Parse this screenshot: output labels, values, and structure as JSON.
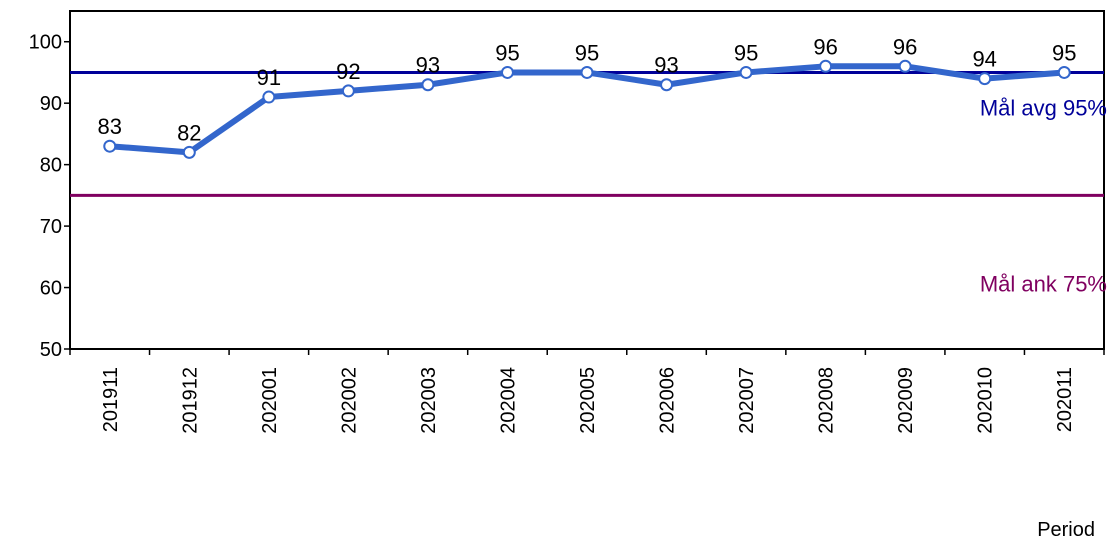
{
  "chart_data": {
    "type": "line",
    "categories": [
      "201911",
      "201912",
      "202001",
      "202002",
      "202003",
      "202004",
      "202005",
      "202006",
      "202007",
      "202008",
      "202009",
      "202010",
      "202011"
    ],
    "series": [
      {
        "values": [
          83,
          82,
          91,
          92,
          93,
          95,
          95,
          93,
          95,
          96,
          96,
          94,
          95
        ],
        "color": "#3366cc"
      }
    ],
    "data_labels": [
      "83",
      "82",
      "91",
      "92",
      "93",
      "95",
      "95",
      "93",
      "95",
      "96",
      "96",
      "94",
      "95"
    ],
    "reference_lines": [
      {
        "value": 95,
        "label": "Mål avg 95%",
        "color": "#000099"
      },
      {
        "value": 75,
        "label": "Mål ank 75%",
        "color": "#800060"
      }
    ],
    "xlabel": "Period",
    "ylabel": "",
    "ylim": [
      50,
      105
    ],
    "yticks": [
      50,
      60,
      70,
      80,
      90,
      100
    ],
    "grid": false,
    "legend": "none"
  }
}
